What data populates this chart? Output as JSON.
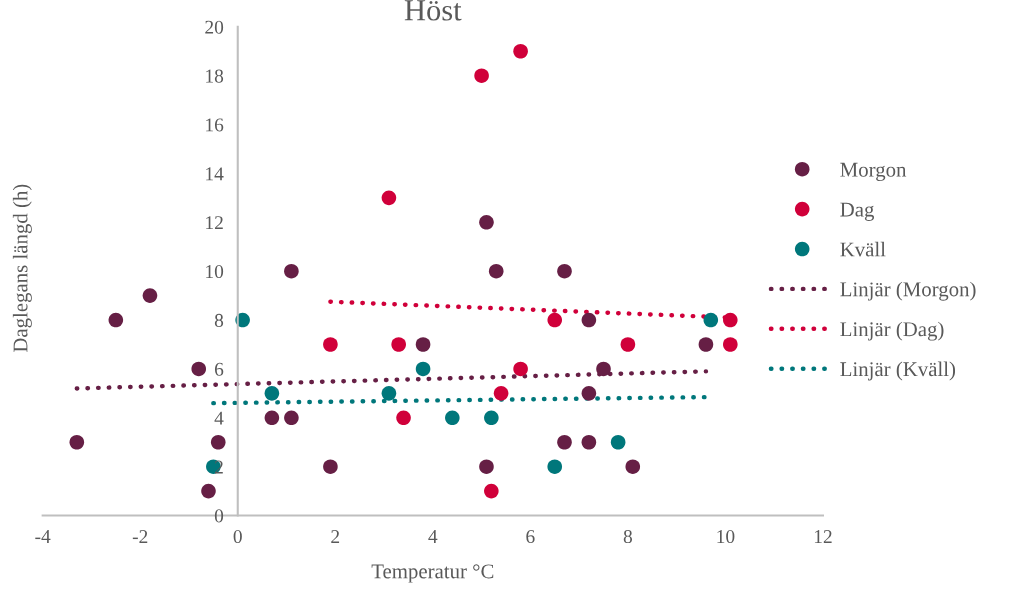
{
  "chart_data": {
    "type": "scatter",
    "title": "Höst",
    "xlabel": "Temperatur °C",
    "ylabel": "Daglegans längd (h)",
    "xlim": [
      -4,
      12
    ],
    "xticks": [
      -4,
      -2,
      0,
      2,
      4,
      6,
      8,
      10,
      12
    ],
    "ylim": [
      0,
      20
    ],
    "yticks": [
      0,
      2,
      4,
      6,
      8,
      10,
      12,
      14,
      16,
      18,
      20
    ],
    "grid": false,
    "legend": "right",
    "marker": "circle",
    "series": [
      {
        "name": "Morgon",
        "color": "#661f45",
        "x": [
          -3.3,
          -2.5,
          -1.8,
          -0.8,
          -0.4,
          -0.6,
          0.7,
          1.1,
          1.1,
          1.9,
          3.8,
          5.1,
          5.3,
          5.1,
          6.7,
          7.2,
          7.5,
          7.2,
          6.7,
          7.2,
          8.1,
          9.6
        ],
        "values": [
          3,
          8,
          9,
          6,
          3,
          1,
          4,
          4,
          10,
          2,
          7,
          12,
          10,
          2,
          10,
          8,
          6,
          5,
          3,
          3,
          2,
          7
        ]
      },
      {
        "name": "Dag",
        "color": "#d0003a",
        "x": [
          3.1,
          5.0,
          5.8,
          1.9,
          3.3,
          3.4,
          5.4,
          5.8,
          6.5,
          8.0,
          10.1,
          10.1,
          5.2
        ],
        "values": [
          13,
          18,
          19,
          7,
          7,
          4,
          5,
          6,
          8,
          7,
          8,
          7,
          1
        ]
      },
      {
        "name": "Kväll",
        "color": "#00777b",
        "x": [
          0.1,
          -0.5,
          0.7,
          3.1,
          3.8,
          4.4,
          5.2,
          6.5,
          7.8,
          9.7
        ],
        "values": [
          8,
          2,
          5,
          5,
          6,
          4,
          4,
          2,
          3,
          8
        ]
      },
      {
        "name": "Linjär (Morgon)",
        "type": "line",
        "line_style": "dotted",
        "marker": "none",
        "color": "#661f45",
        "x": [
          -3.3,
          9.6
        ],
        "values": [
          5.2,
          5.9
        ]
      },
      {
        "name": "Linjär (Dag)",
        "type": "line",
        "line_style": "dotted",
        "marker": "none",
        "color": "#d0003a",
        "x": [
          1.9,
          10.1
        ],
        "values": [
          8.75,
          8.1
        ]
      },
      {
        "name": "Linjär (Kväll)",
        "type": "line",
        "line_style": "dotted",
        "marker": "none",
        "color": "#00777b",
        "x": [
          -0.5,
          9.7
        ],
        "values": [
          4.6,
          4.85
        ]
      }
    ]
  }
}
